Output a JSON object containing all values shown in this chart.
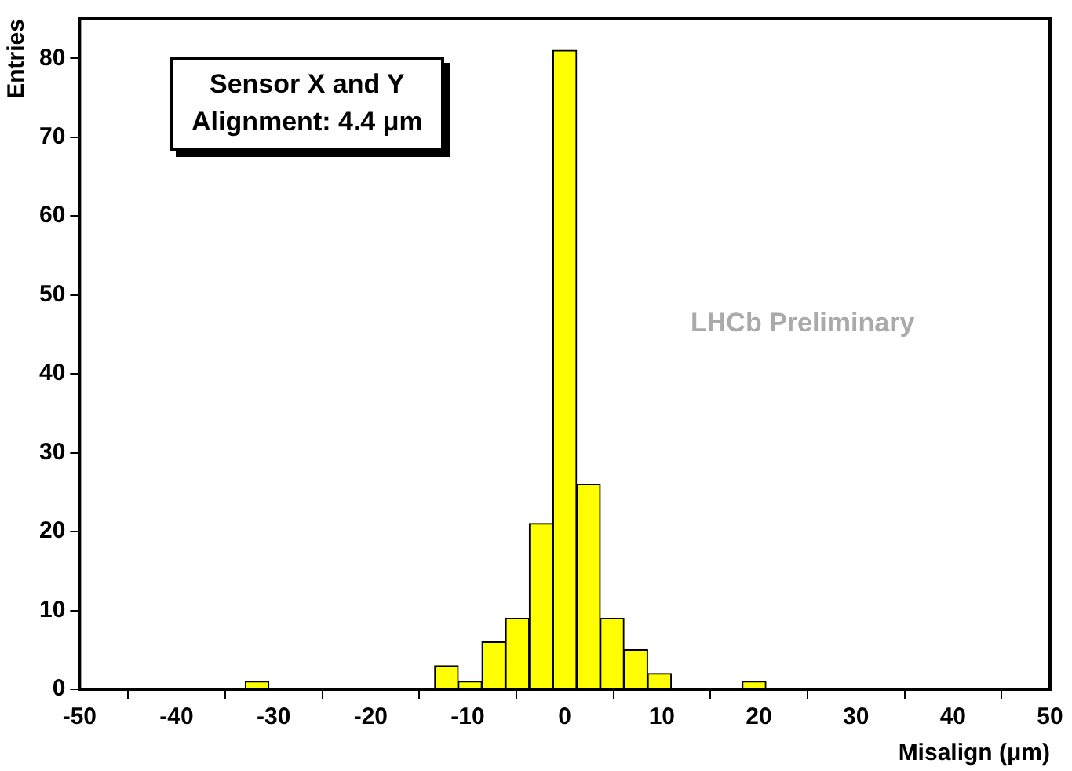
{
  "chart_data": {
    "type": "histogram",
    "xlabel": "Misalign (μm)",
    "ylabel": "Entries",
    "annotations": [
      "Sensor X and Y\nAlignment: 4.4 μm",
      "LHCb Preliminary"
    ],
    "bins": [
      -50,
      -47.56,
      -45.12,
      -42.68,
      -40.24,
      -37.8,
      -35.37,
      -32.93,
      -30.49,
      -28.05,
      -25.61,
      -23.17,
      -20.73,
      -18.29,
      -15.85,
      -13.41,
      -10.98,
      -8.54,
      -6.1,
      -3.66,
      -1.22,
      1.22,
      3.66,
      6.1,
      8.54,
      10.98,
      13.41,
      15.85,
      18.29,
      20.73,
      23.17,
      25.61,
      28.05,
      30.49,
      32.93,
      35.37,
      37.8,
      40.24,
      42.68,
      45.12,
      47.56,
      50
    ],
    "values": [
      0,
      0,
      0,
      0,
      0,
      0,
      0,
      1,
      0,
      0,
      0,
      0,
      0,
      0,
      0,
      3,
      1,
      6,
      9,
      21,
      81,
      26,
      9,
      5,
      2,
      0,
      0,
      0,
      1,
      0,
      0,
      0,
      0,
      0,
      0,
      0,
      0,
      0,
      0,
      0,
      0
    ],
    "color": "#ffff00",
    "xlim": [
      -50,
      50
    ],
    "xticks": [
      -50,
      -40,
      -30,
      -20,
      -10,
      0,
      10,
      20,
      30,
      40,
      50
    ],
    "ylim": [
      0,
      85
    ],
    "yticks": [
      0,
      10,
      20,
      30,
      40,
      50,
      60,
      70,
      80
    ],
    "grid": false,
    "legend": false
  }
}
